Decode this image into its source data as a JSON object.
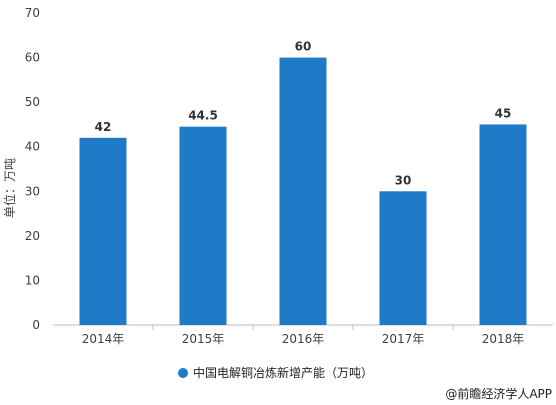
{
  "chart_data": {
    "type": "bar",
    "categories": [
      "2014年",
      "2015年",
      "2016年",
      "2017年",
      "2018年"
    ],
    "series": [
      {
        "name": "中国电解铜冶炼新增产能（万吨）",
        "values": [
          42,
          44.5,
          60,
          30,
          45
        ]
      }
    ],
    "value_labels": [
      "42",
      "44.5",
      "60",
      "30",
      "45"
    ],
    "ylabel": "单位：万吨",
    "ylim": [
      0,
      70
    ],
    "yticks": [
      0,
      10,
      20,
      30,
      40,
      50,
      60,
      70
    ],
    "grid": false,
    "legend_position": "bottom",
    "bar_color": "#1f7bc8",
    "credit": "@前瞻经济学人APP"
  }
}
